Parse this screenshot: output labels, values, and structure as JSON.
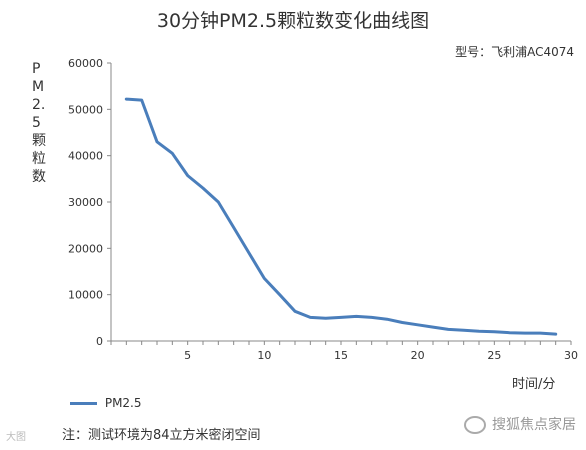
{
  "chart_data": {
    "type": "line",
    "title": "30分钟PM2.5颗粒数变化曲线图",
    "subtitle": "型号：飞利浦AC4074",
    "ylabel": "PM2.5颗粒数",
    "xlabel": "时间/分",
    "xlim": [
      0,
      30
    ],
    "ylim": [
      0,
      60000
    ],
    "x_ticks": [
      5,
      10,
      15,
      20,
      25,
      30
    ],
    "y_ticks": [
      0,
      10000,
      20000,
      30000,
      40000,
      50000,
      60000
    ],
    "series": [
      {
        "name": "PM2.5",
        "color": "#4a7ebb",
        "x": [
          1,
          2,
          3,
          4,
          5,
          6,
          7,
          8,
          9,
          10,
          11,
          12,
          13,
          14,
          15,
          16,
          17,
          18,
          19,
          20,
          21,
          22,
          23,
          24,
          25,
          26,
          27,
          28,
          29
        ],
        "values": [
          52200,
          52000,
          43000,
          40500,
          35700,
          33000,
          30000,
          24500,
          19000,
          13500,
          10000,
          6400,
          5100,
          4900,
          5100,
          5300,
          5100,
          4700,
          4000,
          3500,
          3000,
          2500,
          2300,
          2100,
          2000,
          1800,
          1700,
          1700,
          1500
        ]
      }
    ],
    "grid": false,
    "legend_position": "bottom-left"
  },
  "note": "注：测试环境为84立方米密闭空间",
  "watermark_left": "大图",
  "watermark_right": "搜狐焦点家居"
}
